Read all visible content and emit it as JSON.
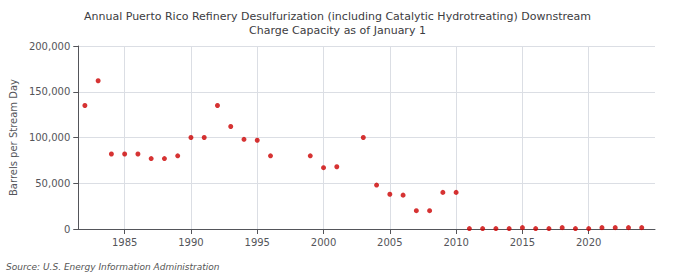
{
  "chart_data": {
    "type": "scatter",
    "title": "Annual Puerto Rico Refinery Desulfurization (including Catalytic Hydrotreating) Downstream\nCharge Capacity as of January 1",
    "ylabel": "Barrels per Stream Day",
    "annotation": "Source: U.S. Energy Information Administration",
    "color": "#cc0000",
    "x": [
      1982,
      1983,
      1984,
      1985,
      1986,
      1987,
      1988,
      1989,
      1990,
      1991,
      1992,
      1993,
      1994,
      1995,
      1996,
      1999,
      2000,
      2001,
      2003,
      2004,
      2005,
      2006,
      2007,
      2008,
      2009,
      2010,
      2011,
      2012,
      2013,
      2014,
      2015,
      2016,
      2017,
      2018,
      2019,
      2020,
      2021,
      2022,
      2023,
      2024
    ],
    "values": [
      135000,
      162000,
      82000,
      82000,
      82000,
      77000,
      77000,
      80000,
      100000,
      100000,
      135000,
      112000,
      98000,
      97000,
      80000,
      80000,
      67000,
      68000,
      100000,
      48000,
      38000,
      37000,
      20000,
      20000,
      40000,
      40000,
      500,
      500,
      500,
      500,
      1500,
      500,
      500,
      1500,
      500,
      500,
      1500,
      1500,
      1500,
      1500
    ],
    "xlim": [
      1981.5,
      2025
    ],
    "ylim": [
      0,
      200000
    ],
    "xticks": [
      1985,
      1990,
      1995,
      2000,
      2005,
      2010,
      2015,
      2020
    ],
    "yticks": [
      0,
      {
        "value": 50000,
        "label": "50,000"
      },
      {
        "value": 100000,
        "label": "100,000"
      },
      {
        "value": 150000,
        "label": "150,000"
      },
      {
        "value": 200000,
        "label": "200,000"
      }
    ],
    "grid": true
  }
}
